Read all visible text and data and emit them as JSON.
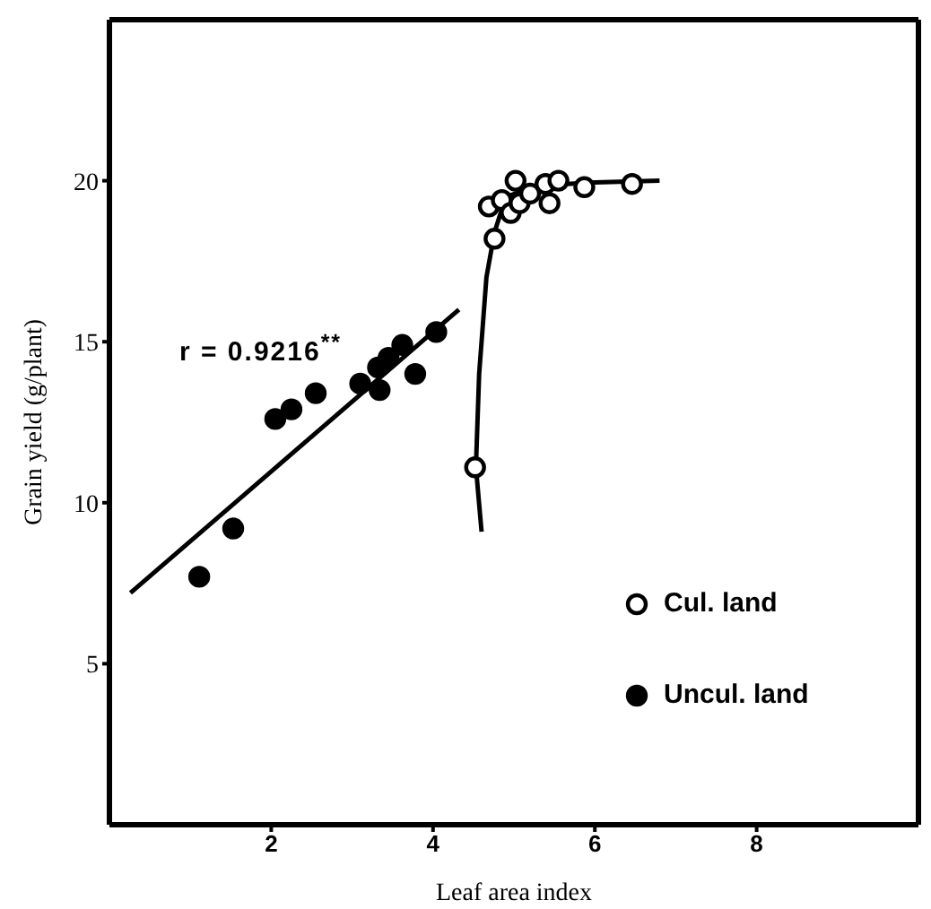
{
  "chart_data": {
    "type": "scatter",
    "xlabel": "Leaf area index",
    "ylabel": "Grain yield (g/plant)",
    "xlim": [
      0,
      10
    ],
    "ylim": [
      0,
      25
    ],
    "xticks": [
      2,
      4,
      6,
      8
    ],
    "yticks": [
      5,
      10,
      15,
      20
    ],
    "legend": "right",
    "marker": "circle",
    "annotations": [
      "r = 0.9216$^{**}$"
    ],
    "series": [
      {
        "name": "Cul. land",
        "color": "#000000",
        "marker": "open circle",
        "x": [
          4.52,
          4.76,
          4.69,
          4.85,
          4.96,
          5.02,
          5.07,
          5.2,
          5.39,
          5.44,
          5.55,
          5.87,
          6.46
        ],
        "values": [
          11.1,
          18.2,
          19.2,
          19.4,
          19.0,
          20.0,
          19.3,
          19.6,
          19.9,
          19.3,
          20.0,
          19.8,
          19.9
        ]
      },
      {
        "name": "Uncul. land",
        "color": "#000000",
        "x": [
          1.11,
          1.53,
          2.05,
          2.25,
          2.55,
          3.1,
          3.34,
          3.32,
          3.45,
          3.62,
          3.78,
          4.04
        ],
        "values": [
          7.7,
          9.2,
          12.6,
          12.9,
          13.4,
          13.7,
          13.5,
          14.2,
          14.5,
          14.9,
          14.0,
          15.3
        ]
      },
      {
        "type": "line",
        "color": "#000000",
        "marker": "none",
        "x": [
          0.26,
          4.32
        ],
        "values": [
          7.2,
          16.0
        ]
      },
      {
        "type": "line",
        "color": "#000000",
        "marker": "none",
        "x": [
          4.6,
          4.53,
          4.57,
          4.66,
          4.76,
          4.9,
          5.3,
          6.0,
          6.8
        ],
        "values": [
          9.1,
          11.1,
          14.0,
          17.0,
          18.4,
          19.5,
          19.85,
          19.95,
          20.0
        ]
      }
    ]
  }
}
